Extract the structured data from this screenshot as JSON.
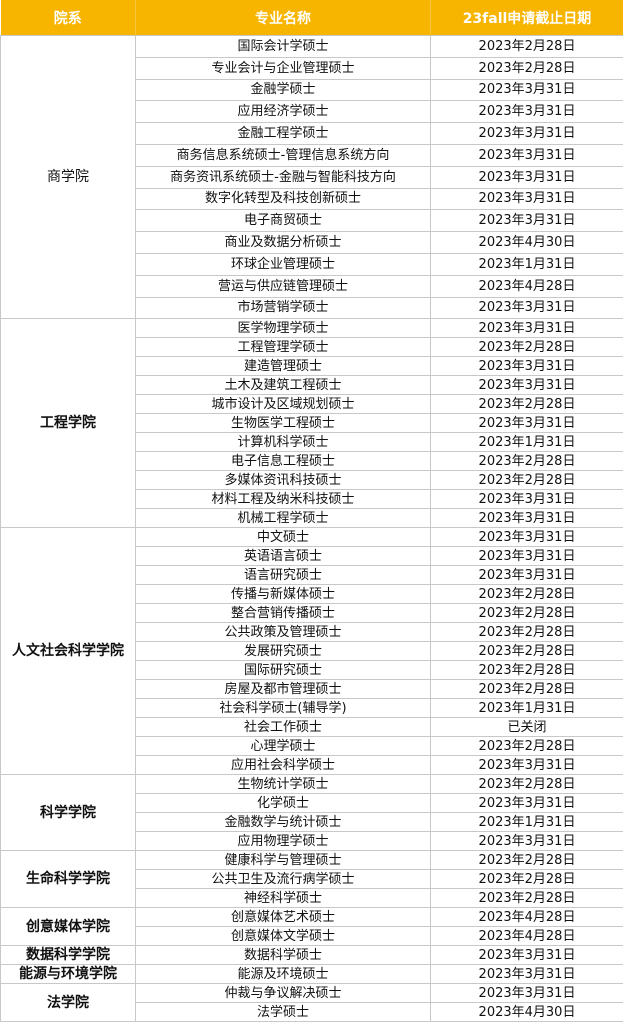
{
  "header": [
    "院系",
    "专业名称",
    "23fall申请截止日期"
  ],
  "groups": [
    {
      "dept": "商学院",
      "rows": [
        [
          "国际会计学硕士",
          "2023年2月28日"
        ],
        [
          "专业会计与企业管理硕士",
          "2023年2月28日"
        ],
        [
          "金融学硕士",
          "2023年3月31日"
        ],
        [
          "应用经济学硕士",
          "2023年3月31日"
        ],
        [
          "金融工程学硕士",
          "2023年3月31日"
        ],
        [
          "商务信息系统硕士-管理信息系统方向",
          "2023年3月31日"
        ],
        [
          "商务资讯系统硕士-金融与智能科技方向",
          "2023年3月31日"
        ],
        [
          "数字化转型及科技创新硕士",
          "2023年3月31日"
        ],
        [
          "电子商贸硕士",
          "2023年3月31日"
        ],
        [
          "商业及数据分析硕士",
          "2023年4月30日"
        ],
        [
          "环球企业管理硕士",
          "2023年1月31日"
        ],
        [
          "营运与供应链管理硕士",
          "2023年4月28日"
        ],
        [
          "市场营销学硕士",
          "2023年3月31日"
        ]
      ]
    },
    {
      "dept": "工程学院",
      "rows": [
        [
          "医学物理学硕士",
          "2023年3月31日"
        ],
        [
          "工程管理学硕士",
          "2023年2月28日"
        ],
        [
          "建造管理硕士",
          "2023年3月31日"
        ],
        [
          "土木及建筑工程硕士",
          "2023年3月31日"
        ],
        [
          "城市设计及区域规划硕士",
          "2023年2月28日"
        ],
        [
          "生物医学工程硕士",
          "2023年3月31日"
        ],
        [
          "计算机科学硕士",
          "2023年1月31日"
        ],
        [
          "电子信息工程硕士",
          "2023年2月28日"
        ],
        [
          "多媒体资讯科技硕士",
          "2023年2月28日"
        ],
        [
          "材料工程及纳米科技硕士",
          "2023年3月31日"
        ],
        [
          "机械工程学硕士",
          "2023年3月31日"
        ]
      ]
    },
    {
      "dept": "人文社会科学学院",
      "rows": [
        [
          "中文硕士",
          "2023年3月31日"
        ],
        [
          "英语语言硕士",
          "2023年3月31日"
        ],
        [
          "语言研究硕士",
          "2023年3月31日"
        ],
        [
          "传播与新媒体硕士",
          "2023年2月28日"
        ],
        [
          "整合营销传播硕士",
          "2023年2月28日"
        ],
        [
          "公共政策及管理硕士",
          "2023年2月28日"
        ],
        [
          "发展研究硕士",
          "2023年2月28日"
        ],
        [
          "国际研究硕士",
          "2023年2月28日"
        ],
        [
          "房屋及都市管理硕士",
          "2023年2月28日"
        ],
        [
          "社会科学硕士(辅导学)",
          "2023年1月31日"
        ],
        [
          "社会工作硕士",
          "已关闭"
        ],
        [
          "心理学硕士",
          "2023年2月28日"
        ],
        [
          "应用社会科学硕士",
          "2023年3月31日"
        ]
      ]
    },
    {
      "dept": "科学学院",
      "rows": [
        [
          "生物统计学硕士",
          "2023年2月28日"
        ],
        [
          "化学硕士",
          "2023年3月31日"
        ],
        [
          "金融数学与统计硕士",
          "2023年1月31日"
        ],
        [
          "应用物理学硕士",
          "2023年3月31日"
        ]
      ]
    },
    {
      "dept": "生命科学学院",
      "rows": [
        [
          "健康科学与管理硕士",
          "2023年2月28日"
        ],
        [
          "公共卫生及流行病学硕士",
          "2023年2月28日"
        ],
        [
          "神经科学硕士",
          "2023年2月28日"
        ]
      ]
    },
    {
      "dept": "创意媒体学院",
      "rows": [
        [
          "创意媒体艺术硕士",
          "2023年4月28日"
        ],
        [
          "创意媒体文学硕士",
          "2023年4月28日"
        ]
      ]
    },
    {
      "dept": "数据科学学院",
      "rows": [
        [
          "数据科学硕士",
          "2023年3月31日"
        ]
      ]
    },
    {
      "dept": "能源与环境学院",
      "rows": [
        [
          "能源及环境硕士",
          "2023年3月31日"
        ]
      ]
    },
    {
      "dept": "法学院",
      "rows": [
        [
          "仲裁与争议解决硕士",
          "2023年3月31日"
        ],
        [
          "法学硕士",
          "2023年4月30日"
        ]
      ]
    }
  ]
}
